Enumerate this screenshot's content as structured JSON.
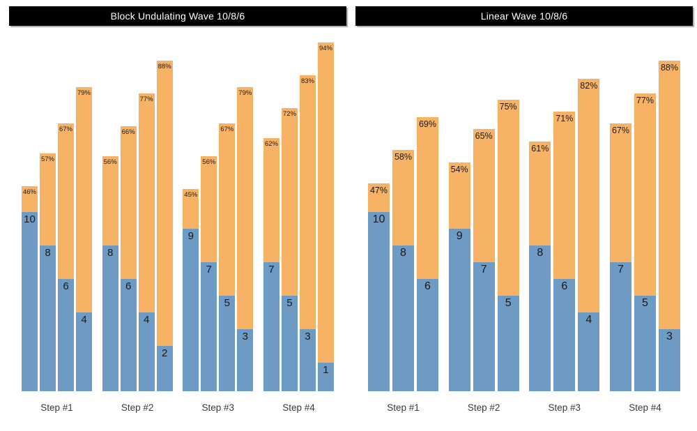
{
  "colors": {
    "reps_bar": "#6d9bc3",
    "pct_bar": "#f8b266",
    "title_bg": "#000000",
    "title_text": "#ffffff",
    "label_text": "#1a1a1a",
    "axis_text": "#3a3a3a",
    "background": "#ffffff"
  },
  "chart_data": [
    {
      "type": "bar",
      "subtype": "stacked",
      "title": "Block Undulating Wave 10/8/6",
      "categories": [
        "Step #1",
        "Step #2",
        "Step #3",
        "Step #4"
      ],
      "series_names": [
        "reps",
        "intensity_percent"
      ],
      "legend": "none",
      "grid": "off",
      "groups": [
        {
          "category": "Step #1",
          "bars": [
            {
              "reps": 10,
              "pct": 46,
              "pct_label": "46%"
            },
            {
              "reps": 8,
              "pct": 57,
              "pct_label": "57%"
            },
            {
              "reps": 6,
              "pct": 67,
              "pct_label": "67%"
            },
            {
              "reps": 4,
              "pct": 79,
              "pct_label": "79%"
            }
          ]
        },
        {
          "category": "Step #2",
          "bars": [
            {
              "reps": 8,
              "pct": 56,
              "pct_label": "56%"
            },
            {
              "reps": 6,
              "pct": 66,
              "pct_label": "66%"
            },
            {
              "reps": 4,
              "pct": 77,
              "pct_label": "77%"
            },
            {
              "reps": 2,
              "pct": 88,
              "pct_label": "88%"
            }
          ]
        },
        {
          "category": "Step #3",
          "bars": [
            {
              "reps": 9,
              "pct": 45,
              "pct_label": "45%"
            },
            {
              "reps": 7,
              "pct": 56,
              "pct_label": "56%"
            },
            {
              "reps": 5,
              "pct": 67,
              "pct_label": "67%"
            },
            {
              "reps": 3,
              "pct": 79,
              "pct_label": "79%"
            }
          ]
        },
        {
          "category": "Step #4",
          "bars": [
            {
              "reps": 7,
              "pct": 62,
              "pct_label": "62%"
            },
            {
              "reps": 5,
              "pct": 72,
              "pct_label": "72%"
            },
            {
              "reps": 3,
              "pct": 83,
              "pct_label": "83%"
            },
            {
              "reps": 1,
              "pct": 94,
              "pct_label": "94%"
            }
          ]
        }
      ]
    },
    {
      "type": "bar",
      "subtype": "stacked",
      "title": "Linear Wave 10/8/6",
      "categories": [
        "Step #1",
        "Step #2",
        "Step #3",
        "Step #4"
      ],
      "series_names": [
        "reps",
        "intensity_percent"
      ],
      "legend": "none",
      "grid": "off",
      "groups": [
        {
          "category": "Step #1",
          "bars": [
            {
              "reps": 10,
              "pct": 47,
              "pct_label": "47%"
            },
            {
              "reps": 8,
              "pct": 58,
              "pct_label": "58%"
            },
            {
              "reps": 6,
              "pct": 69,
              "pct_label": "69%"
            }
          ]
        },
        {
          "category": "Step #2",
          "bars": [
            {
              "reps": 9,
              "pct": 54,
              "pct_label": "54%"
            },
            {
              "reps": 7,
              "pct": 65,
              "pct_label": "65%"
            },
            {
              "reps": 5,
              "pct": 75,
              "pct_label": "75%"
            }
          ]
        },
        {
          "category": "Step #3",
          "bars": [
            {
              "reps": 8,
              "pct": 61,
              "pct_label": "61%"
            },
            {
              "reps": 6,
              "pct": 71,
              "pct_label": "71%"
            },
            {
              "reps": 4,
              "pct": 82,
              "pct_label": "82%"
            }
          ]
        },
        {
          "category": "Step #4",
          "bars": [
            {
              "reps": 7,
              "pct": 67,
              "pct_label": "67%"
            },
            {
              "reps": 5,
              "pct": 77,
              "pct_label": "77%"
            },
            {
              "reps": 3,
              "pct": 88,
              "pct_label": "88%"
            }
          ]
        }
      ]
    }
  ]
}
